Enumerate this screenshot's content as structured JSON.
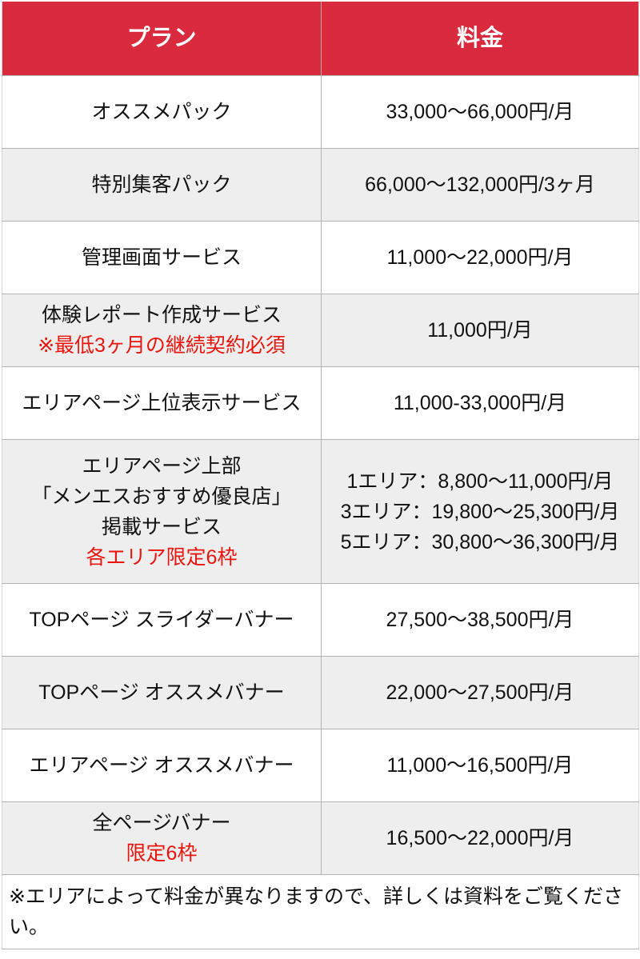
{
  "colors": {
    "header_bg": "#d92b3d",
    "header_text": "#ffffff",
    "row_shade": "#eeeeee",
    "note_red": "#e8150d",
    "border": "#b3b3b3",
    "text": "#111111"
  },
  "table": {
    "header": {
      "plan_label": "プラン",
      "price_label": "料金"
    },
    "rows": [
      {
        "plan_lines": [
          "オススメパック"
        ],
        "price_lines": [
          "33,000～66,000円/月"
        ]
      },
      {
        "plan_lines": [
          "特別集客パック"
        ],
        "price_lines": [
          "66,000～132,000円/3ヶ月"
        ]
      },
      {
        "plan_lines": [
          "管理画面サービス"
        ],
        "price_lines": [
          "11,000～22,000円/月"
        ]
      },
      {
        "plan_lines": [
          "体験レポート作成サービス"
        ],
        "plan_note": "※最低3ヶ月の継続契約必須",
        "price_lines": [
          "11,000円/月"
        ]
      },
      {
        "plan_lines": [
          "エリアページ上位表示サービス"
        ],
        "price_lines": [
          "11,000-33,000円/月"
        ]
      },
      {
        "plan_lines": [
          "エリアページ上部",
          "「メンエスおすすめ優良店」",
          "掲載サービス"
        ],
        "plan_note": "各エリア限定6枠",
        "price_lines": [
          "1エリア：8,800～11,000円/月",
          "3エリア：19,800～25,300円/月",
          "5エリア：30,800～36,300円/月"
        ]
      },
      {
        "plan_lines": [
          "TOPページ スライダーバナー"
        ],
        "price_lines": [
          "27,500～38,500円/月"
        ]
      },
      {
        "plan_lines": [
          "TOPページ オススメバナー"
        ],
        "price_lines": [
          "22,000～27,500円/月"
        ]
      },
      {
        "plan_lines": [
          "エリアページ オススメバナー"
        ],
        "price_lines": [
          "11,000～16,500円/月"
        ]
      },
      {
        "plan_lines": [
          "全ページバナー"
        ],
        "plan_note": "限定6枠",
        "price_lines": [
          "16,500～22,000円/月"
        ]
      }
    ],
    "footer_note": "※エリアによって料金が異なりますので、詳しくは資料をご覧ください。"
  }
}
